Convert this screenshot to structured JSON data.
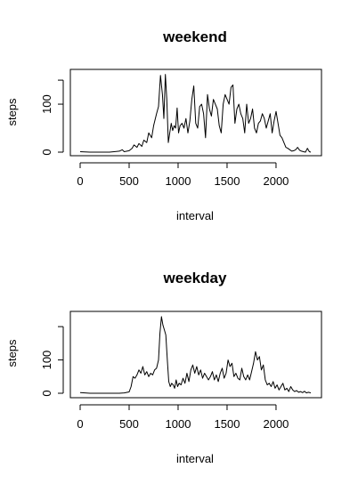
{
  "chart_data": [
    {
      "type": "line",
      "title": "weekend",
      "xlabel": "interval",
      "ylabel": "steps",
      "xlim": [
        0,
        2355
      ],
      "ylim": [
        0,
        165
      ],
      "xticks": [
        0,
        500,
        1000,
        1500,
        2000
      ],
      "yticks": [
        0,
        100
      ],
      "series": [
        {
          "x": [
            0,
            100,
            200,
            300,
            400,
            430,
            450,
            500,
            530,
            550,
            580,
            600,
            630,
            650,
            680,
            700,
            730,
            750,
            780,
            800,
            820,
            840,
            855,
            870,
            885,
            900,
            915,
            930,
            945,
            960,
            975,
            990,
            1005,
            1020,
            1040,
            1060,
            1080,
            1100,
            1120,
            1140,
            1160,
            1180,
            1200,
            1220,
            1240,
            1260,
            1280,
            1300,
            1320,
            1340,
            1360,
            1380,
            1400,
            1420,
            1440,
            1460,
            1480,
            1500,
            1520,
            1540,
            1560,
            1580,
            1600,
            1620,
            1640,
            1660,
            1680,
            1700,
            1720,
            1740,
            1760,
            1780,
            1800,
            1820,
            1840,
            1860,
            1880,
            1900,
            1920,
            1940,
            1960,
            1980,
            2000,
            2020,
            2040,
            2060,
            2080,
            2100,
            2120,
            2140,
            2160,
            2180,
            2200,
            2220,
            2240,
            2260,
            2280,
            2300,
            2320,
            2340,
            2355
          ],
          "values": [
            1,
            0,
            0,
            0,
            2,
            5,
            1,
            3,
            8,
            15,
            10,
            18,
            12,
            25,
            20,
            40,
            30,
            55,
            80,
            95,
            160,
            120,
            70,
            162,
            110,
            20,
            40,
            60,
            45,
            55,
            50,
            92,
            40,
            55,
            60,
            50,
            70,
            40,
            65,
            110,
            138,
            60,
            50,
            95,
            100,
            80,
            30,
            120,
            90,
            75,
            110,
            100,
            90,
            55,
            40,
            100,
            120,
            110,
            100,
            135,
            140,
            60,
            90,
            100,
            80,
            70,
            40,
            100,
            60,
            70,
            90,
            50,
            40,
            60,
            65,
            80,
            70,
            50,
            65,
            80,
            40,
            65,
            85,
            60,
            35,
            30,
            20,
            10,
            8,
            5,
            2,
            3,
            5,
            10,
            4,
            2,
            1,
            0,
            8,
            1,
            0
          ]
        }
      ]
    },
    {
      "type": "line",
      "title": "weekday",
      "xlabel": "interval",
      "ylabel": "steps",
      "xlim": [
        0,
        2355
      ],
      "ylim": [
        0,
        235
      ],
      "xticks": [
        0,
        500,
        1000,
        1500,
        2000
      ],
      "yticks": [
        0,
        100
      ],
      "series": [
        {
          "x": [
            0,
            100,
            200,
            300,
            400,
            450,
            500,
            520,
            540,
            560,
            580,
            600,
            620,
            640,
            660,
            680,
            700,
            720,
            740,
            760,
            780,
            800,
            815,
            830,
            845,
            860,
            875,
            890,
            905,
            920,
            935,
            950,
            965,
            980,
            995,
            1010,
            1030,
            1050,
            1070,
            1090,
            1110,
            1130,
            1150,
            1170,
            1190,
            1210,
            1230,
            1250,
            1270,
            1290,
            1310,
            1330,
            1350,
            1370,
            1390,
            1410,
            1430,
            1450,
            1470,
            1490,
            1510,
            1530,
            1550,
            1570,
            1590,
            1610,
            1630,
            1650,
            1670,
            1690,
            1710,
            1730,
            1750,
            1770,
            1790,
            1810,
            1830,
            1850,
            1870,
            1890,
            1910,
            1930,
            1950,
            1970,
            1990,
            2010,
            2030,
            2050,
            2070,
            2090,
            2110,
            2130,
            2150,
            2170,
            2190,
            2210,
            2230,
            2250,
            2270,
            2290,
            2310,
            2330,
            2355
          ],
          "values": [
            2,
            0,
            0,
            0,
            0,
            1,
            4,
            20,
            50,
            45,
            55,
            70,
            60,
            80,
            55,
            65,
            50,
            60,
            55,
            70,
            75,
            100,
            180,
            230,
            205,
            190,
            175,
            100,
            35,
            20,
            30,
            25,
            15,
            40,
            20,
            30,
            25,
            45,
            30,
            60,
            35,
            70,
            85,
            60,
            80,
            55,
            70,
            45,
            60,
            50,
            40,
            50,
            65,
            40,
            55,
            35,
            60,
            75,
            45,
            60,
            100,
            80,
            90,
            50,
            60,
            45,
            40,
            75,
            50,
            40,
            55,
            40,
            65,
            90,
            125,
            100,
            110,
            70,
            85,
            40,
            25,
            30,
            20,
            35,
            15,
            25,
            10,
            20,
            30,
            10,
            15,
            5,
            20,
            10,
            5,
            8,
            3,
            5,
            2,
            6,
            1,
            3,
            1
          ]
        }
      ]
    }
  ]
}
